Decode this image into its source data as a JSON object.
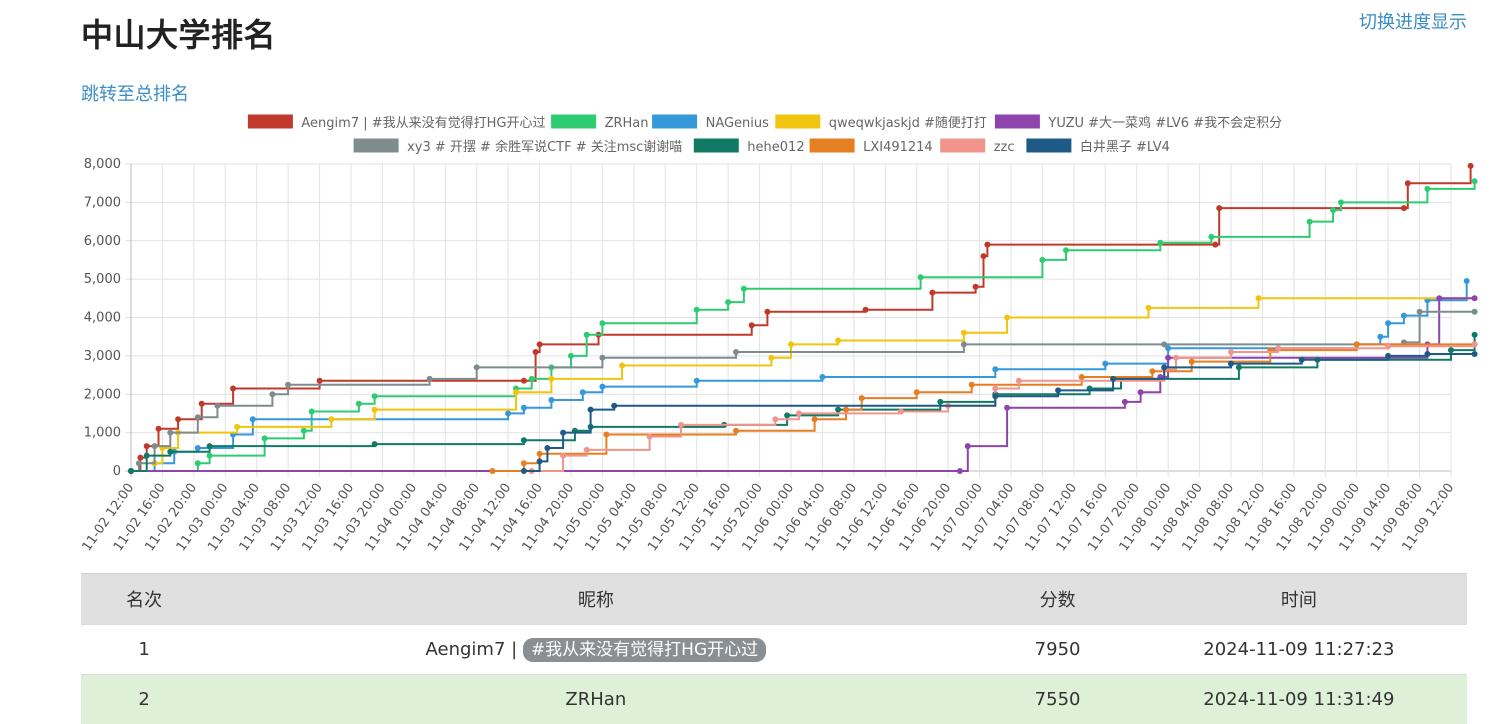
{
  "header": {
    "title": "中山大学排名",
    "toggle_label": "切换进度显示",
    "jump_label": "跳转至总排名"
  },
  "chart_data": {
    "type": "line",
    "step": true,
    "ylim": [
      0,
      8000
    ],
    "yticks": [
      "0",
      "1,000",
      "2,000",
      "3,000",
      "4,000",
      "5,000",
      "6,000",
      "7,000",
      "8,000"
    ],
    "xticks": [
      "11-02 12:00",
      "11-02 16:00",
      "11-02 20:00",
      "11-03 00:00",
      "11-03 04:00",
      "11-03 08:00",
      "11-03 12:00",
      "11-03 16:00",
      "11-03 20:00",
      "11-04 00:00",
      "11-04 04:00",
      "11-04 08:00",
      "11-04 12:00",
      "11-04 16:00",
      "11-04 20:00",
      "11-05 00:00",
      "11-05 04:00",
      "11-05 08:00",
      "11-05 12:00",
      "11-05 16:00",
      "11-05 20:00",
      "11-06 00:00",
      "11-06 04:00",
      "11-06 08:00",
      "11-06 12:00",
      "11-06 16:00",
      "11-06 20:00",
      "11-07 00:00",
      "11-07 04:00",
      "11-07 08:00",
      "11-07 12:00",
      "11-07 16:00",
      "11-07 20:00",
      "11-08 00:00",
      "11-08 04:00",
      "11-08 08:00",
      "11-08 12:00",
      "11-08 16:00",
      "11-08 20:00",
      "11-09 00:00",
      "11-09 04:00",
      "11-09 08:00",
      "11-09 12:00"
    ],
    "x_unit": "hours since 11-02 12:00",
    "grid": true,
    "legend_position": "top",
    "series": [
      {
        "name": "Aengim7 | #我从来没有觉得打HG开心过",
        "color": "#c0392b",
        "points": [
          [
            0,
            0
          ],
          [
            1.2,
            350
          ],
          [
            2,
            650
          ],
          [
            3.5,
            1100
          ],
          [
            6,
            1350
          ],
          [
            9,
            1750
          ],
          [
            13,
            2150
          ],
          [
            24,
            2350
          ],
          [
            50,
            2350
          ],
          [
            51.5,
            3100
          ],
          [
            52,
            3300
          ],
          [
            59.5,
            3550
          ],
          [
            79,
            3800
          ],
          [
            81,
            4150
          ],
          [
            93.5,
            4200
          ],
          [
            102,
            4650
          ],
          [
            107.5,
            4800
          ],
          [
            108.5,
            5600
          ],
          [
            109,
            5900
          ],
          [
            138,
            5900
          ],
          [
            138.5,
            6850
          ],
          [
            162,
            6850
          ],
          [
            162.5,
            7500
          ],
          [
            170.5,
            7950
          ]
        ]
      },
      {
        "name": "ZRHan",
        "color": "#2ecc71",
        "points": [
          [
            0,
            0
          ],
          [
            8.5,
            200
          ],
          [
            10,
            400
          ],
          [
            17,
            850
          ],
          [
            22,
            1050
          ],
          [
            23,
            1550
          ],
          [
            29,
            1750
          ],
          [
            31,
            1950
          ],
          [
            49,
            2150
          ],
          [
            51,
            2400
          ],
          [
            53.5,
            2700
          ],
          [
            56,
            3000
          ],
          [
            58,
            3550
          ],
          [
            60,
            3850
          ],
          [
            72,
            4200
          ],
          [
            76,
            4400
          ],
          [
            78,
            4750
          ],
          [
            100.5,
            5050
          ],
          [
            116,
            5500
          ],
          [
            119,
            5750
          ],
          [
            131,
            5950
          ],
          [
            137.5,
            6100
          ],
          [
            150,
            6500
          ],
          [
            153,
            6800
          ],
          [
            154,
            7000
          ],
          [
            165,
            7350
          ],
          [
            171,
            7550
          ]
        ]
      },
      {
        "name": "NAGenius",
        "color": "#3498db",
        "points": [
          [
            0,
            0
          ],
          [
            3,
            200
          ],
          [
            5.5,
            500
          ],
          [
            8.5,
            600
          ],
          [
            13,
            950
          ],
          [
            15.5,
            1350
          ],
          [
            48,
            1500
          ],
          [
            50,
            1650
          ],
          [
            53.5,
            1850
          ],
          [
            57.5,
            2050
          ],
          [
            60,
            2200
          ],
          [
            72,
            2350
          ],
          [
            88,
            2450
          ],
          [
            110,
            2650
          ],
          [
            124,
            2800
          ],
          [
            132,
            3200
          ],
          [
            156,
            3300
          ],
          [
            159,
            3500
          ],
          [
            160,
            3850
          ],
          [
            162,
            4050
          ],
          [
            165,
            4450
          ],
          [
            170,
            4950
          ]
        ]
      },
      {
        "name": "qweqwkjaskjd #随便打打",
        "color": "#f1c40f",
        "points": [
          [
            3,
            200
          ],
          [
            4,
            600
          ],
          [
            6,
            1000
          ],
          [
            13.5,
            1150
          ],
          [
            25.5,
            1350
          ],
          [
            31,
            1600
          ],
          [
            49,
            2050
          ],
          [
            53.5,
            2400
          ],
          [
            62.5,
            2750
          ],
          [
            81.5,
            2950
          ],
          [
            84,
            3300
          ],
          [
            90,
            3400
          ],
          [
            106,
            3600
          ],
          [
            111.5,
            4000
          ],
          [
            129.5,
            4250
          ],
          [
            143.5,
            4500
          ],
          [
            171,
            4500
          ]
        ]
      },
      {
        "name": "YUZU #大一菜鸡 #LV6 #我不会定积分",
        "color": "#8e44ad",
        "points": [
          [
            0,
            0
          ],
          [
            105.5,
            0
          ],
          [
            106.5,
            650
          ],
          [
            111.5,
            1650
          ],
          [
            126.5,
            1800
          ],
          [
            128.5,
            2050
          ],
          [
            131,
            2450
          ],
          [
            132,
            2950
          ],
          [
            165,
            3300
          ],
          [
            166.5,
            4500
          ],
          [
            171,
            4500
          ]
        ]
      },
      {
        "name": "xy3 # 开摆 # 余胜军说CTF # 关注msc谢谢喵",
        "color": "#7f8c8d",
        "points": [
          [
            0,
            0
          ],
          [
            1,
            200
          ],
          [
            3,
            650
          ],
          [
            5,
            1000
          ],
          [
            8.5,
            1400
          ],
          [
            11,
            1700
          ],
          [
            18,
            2000
          ],
          [
            20,
            2250
          ],
          [
            38,
            2400
          ],
          [
            44,
            2700
          ],
          [
            60,
            2950
          ],
          [
            77,
            3100
          ],
          [
            106,
            3300
          ],
          [
            131.5,
            3300
          ],
          [
            162,
            3350
          ],
          [
            164,
            4150
          ],
          [
            171,
            4150
          ]
        ]
      },
      {
        "name": "hehe012",
        "color": "#117a65",
        "points": [
          [
            0,
            0
          ],
          [
            2,
            400
          ],
          [
            5,
            500
          ],
          [
            10,
            650
          ],
          [
            31,
            700
          ],
          [
            50,
            800
          ],
          [
            56.5,
            1050
          ],
          [
            58.5,
            1150
          ],
          [
            75.5,
            1200
          ],
          [
            83.5,
            1450
          ],
          [
            90,
            1600
          ],
          [
            103,
            1800
          ],
          [
            110,
            2000
          ],
          [
            122,
            2150
          ],
          [
            126,
            2400
          ],
          [
            141,
            2700
          ],
          [
            151,
            2900
          ],
          [
            168,
            3150
          ],
          [
            171,
            3550
          ]
        ]
      },
      {
        "name": "LXI491214",
        "color": "#e67e22",
        "points": [
          [
            46,
            0
          ],
          [
            50,
            200
          ],
          [
            52,
            450
          ],
          [
            60.5,
            950
          ],
          [
            77,
            1050
          ],
          [
            87,
            1350
          ],
          [
            91,
            1600
          ],
          [
            93,
            1900
          ],
          [
            100,
            2050
          ],
          [
            107,
            2250
          ],
          [
            121,
            2450
          ],
          [
            130,
            2600
          ],
          [
            135,
            2850
          ],
          [
            145,
            3150
          ],
          [
            156,
            3300
          ],
          [
            171,
            3300
          ]
        ]
      },
      {
        "name": "zzc",
        "color": "#f1948a",
        "points": [
          [
            51,
            0
          ],
          [
            55,
            400
          ],
          [
            58,
            550
          ],
          [
            66,
            900
          ],
          [
            70,
            1200
          ],
          [
            82,
            1350
          ],
          [
            85,
            1500
          ],
          [
            98,
            1550
          ],
          [
            104,
            1700
          ],
          [
            110,
            2150
          ],
          [
            113,
            2350
          ],
          [
            131.5,
            2650
          ],
          [
            133,
            2950
          ],
          [
            140,
            3100
          ],
          [
            146,
            3200
          ],
          [
            160,
            3250
          ],
          [
            171,
            3300
          ]
        ]
      },
      {
        "name": "白井黑子 #LV4",
        "color": "#1f5a87",
        "points": [
          [
            50,
            0
          ],
          [
            52,
            250
          ],
          [
            53,
            600
          ],
          [
            55,
            1000
          ],
          [
            58.5,
            1600
          ],
          [
            61.5,
            1700
          ],
          [
            110,
            1950
          ],
          [
            118,
            2100
          ],
          [
            125,
            2400
          ],
          [
            131.5,
            2700
          ],
          [
            140,
            2800
          ],
          [
            149,
            2900
          ],
          [
            160,
            3000
          ],
          [
            165,
            3050
          ],
          [
            171,
            3050
          ]
        ]
      }
    ]
  },
  "table": {
    "headers": {
      "rank": "名次",
      "nickname": "昵称",
      "score": "分数",
      "time": "时间"
    },
    "rows": [
      {
        "rank": "1",
        "name": "Aengim7 |",
        "tag": "#我从来没有觉得打HG开心过",
        "score": "7950",
        "time": "2024-11-09 11:27:23"
      },
      {
        "rank": "2",
        "name": "ZRHan",
        "tag": "",
        "score": "7550",
        "time": "2024-11-09 11:31:49"
      }
    ]
  }
}
